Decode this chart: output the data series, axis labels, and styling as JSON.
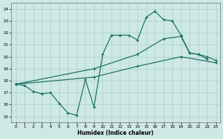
{
  "xlabel": "Humidex (Indice chaleur)",
  "bg_color": "#cde8e5",
  "grid_color": "#a8ceca",
  "line_color": "#1a7060",
  "xlim": [
    -0.5,
    23.5
  ],
  "ylim": [
    14.5,
    24.5
  ],
  "xticks": [
    0,
    1,
    2,
    3,
    4,
    5,
    6,
    7,
    8,
    9,
    10,
    11,
    12,
    13,
    14,
    15,
    16,
    17,
    18,
    19,
    20,
    21,
    22,
    23
  ],
  "yticks": [
    15,
    16,
    17,
    18,
    19,
    20,
    21,
    22,
    23,
    24
  ],
  "wavy_x": [
    0,
    1,
    2,
    3,
    4,
    5,
    6,
    7,
    8,
    9,
    10,
    11,
    12,
    13,
    14,
    15,
    16,
    17,
    18,
    19,
    20,
    21,
    22
  ],
  "wavy_y": [
    17.7,
    17.6,
    17.1,
    16.9,
    17.0,
    16.1,
    15.3,
    15.1,
    18.1,
    15.8,
    20.2,
    21.8,
    21.8,
    21.8,
    21.4,
    23.3,
    23.8,
    23.1,
    23.0,
    21.8,
    20.3,
    20.2,
    19.8
  ],
  "upper_x": [
    0,
    9,
    14,
    17,
    19,
    20,
    21,
    22,
    23
  ],
  "upper_y": [
    17.7,
    19.0,
    20.2,
    21.5,
    21.7,
    20.3,
    20.2,
    20.0,
    19.7
  ],
  "lower_x": [
    0,
    9,
    14,
    19,
    23
  ],
  "lower_y": [
    17.7,
    18.3,
    19.2,
    20.0,
    19.5
  ]
}
